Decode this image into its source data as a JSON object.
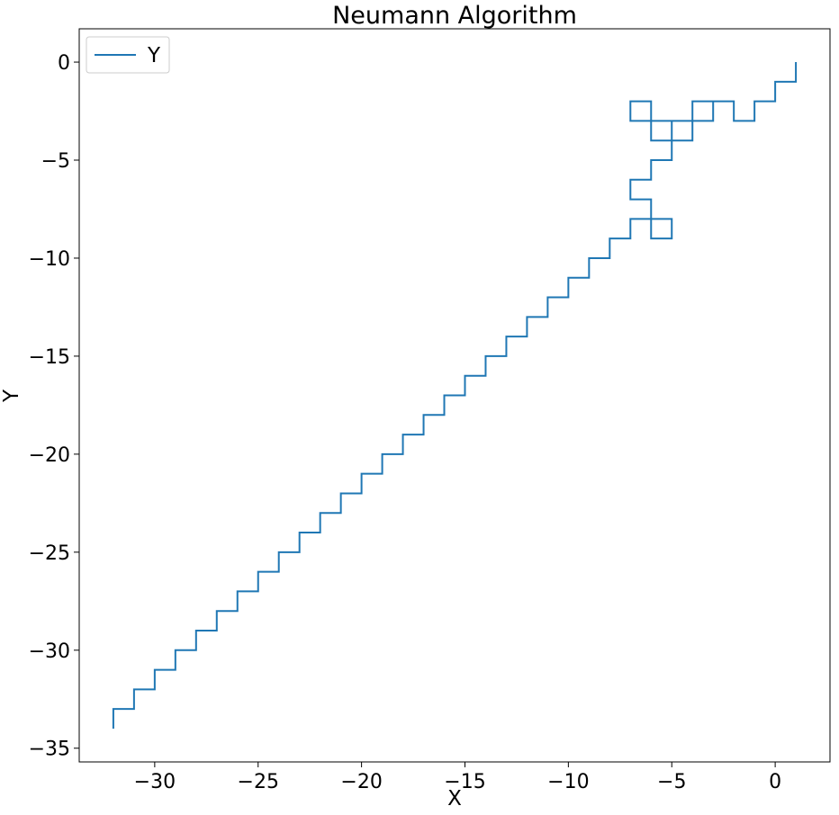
{
  "chart_data": {
    "type": "line",
    "title": "Neumann Algorithm",
    "xlabel": "X",
    "ylabel": "Y",
    "xlim": [
      -33.65,
      2.65
    ],
    "ylim": [
      -35.7,
      1.7
    ],
    "xticks": [
      -30,
      -25,
      -20,
      -15,
      -10,
      -5,
      0
    ],
    "yticks": [
      0,
      -5,
      -10,
      -15,
      -20,
      -25,
      -30,
      -35
    ],
    "grid": false,
    "legend": {
      "position": "top-left",
      "entries": [
        "Y"
      ]
    },
    "series": [
      {
        "name": "Y",
        "color": "#1f77b4",
        "x": [
          1,
          1,
          0,
          0,
          -1,
          -1,
          -2,
          -2,
          -3,
          -3,
          -4,
          -4,
          -5,
          -5,
          -6,
          -6,
          -7,
          -7,
          -6,
          -6,
          -5,
          -5,
          -4,
          -4,
          -3,
          -3,
          -4,
          -4,
          -5,
          -5,
          -6,
          -6,
          -7,
          -7,
          -6,
          -6,
          -5,
          -5,
          -6,
          -6,
          -7,
          -7,
          -8,
          -8,
          -9,
          -9,
          -10,
          -10,
          -11,
          -11,
          -12,
          -12,
          -13,
          -13,
          -14,
          -14,
          -15,
          -15,
          -16,
          -16,
          -17,
          -17,
          -18,
          -18,
          -19,
          -19,
          -20,
          -20,
          -21,
          -21,
          -22,
          -22,
          -23,
          -23,
          -24,
          -24,
          -25,
          -25,
          -26,
          -26,
          -27,
          -27,
          -28,
          -28,
          -29,
          -29,
          -30,
          -30,
          -31,
          -31,
          -32,
          -32
        ],
        "y": [
          0,
          -1,
          -1,
          -2,
          -2,
          -3,
          -3,
          -2,
          -2,
          -3,
          -3,
          -4,
          -4,
          -3,
          -3,
          -2,
          -2,
          -3,
          -3,
          -4,
          -4,
          -3,
          -3,
          -2,
          -2,
          -3,
          -3,
          -4,
          -4,
          -5,
          -5,
          -6,
          -6,
          -7,
          -7,
          -8,
          -8,
          -9,
          -9,
          -8,
          -8,
          -9,
          -9,
          -10,
          -10,
          -11,
          -11,
          -12,
          -12,
          -13,
          -13,
          -14,
          -14,
          -15,
          -15,
          -16,
          -16,
          -17,
          -17,
          -18,
          -18,
          -19,
          -19,
          -20,
          -20,
          -21,
          -21,
          -22,
          -22,
          -23,
          -23,
          -24,
          -24,
          -25,
          -25,
          -26,
          -26,
          -27,
          -27,
          -28,
          -28,
          -29,
          -29,
          -30,
          -30,
          -31,
          -31,
          -32,
          -32,
          -33,
          -33,
          -34
        ]
      }
    ]
  }
}
